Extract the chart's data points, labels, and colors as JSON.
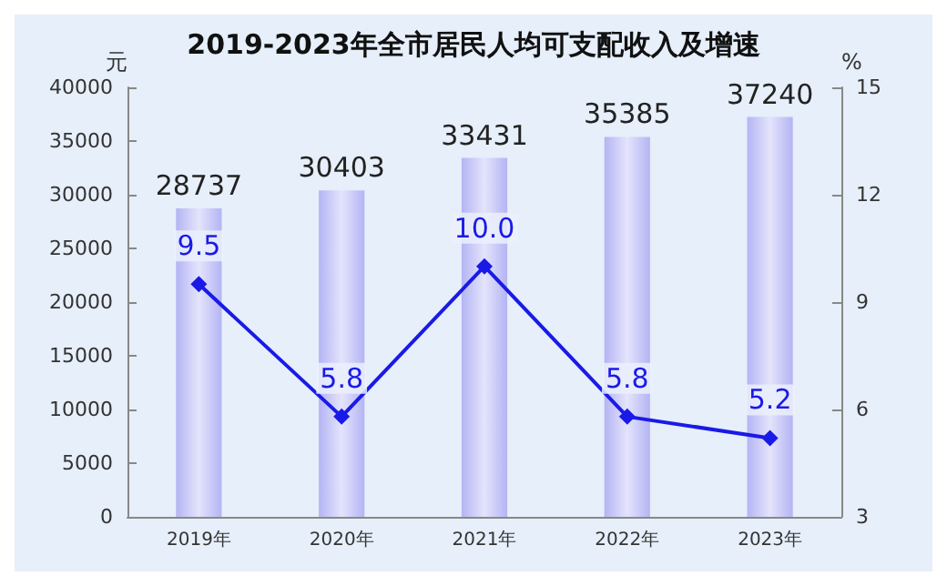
{
  "chart_data": {
    "type": "bar",
    "title": "2019-2023年全市居民人均可支配收入及增速",
    "ylabel": "元",
    "y2label": "%",
    "categories": [
      "2019年",
      "2020年",
      "2021年",
      "2022年",
      "2023年"
    ],
    "series": [
      {
        "color": "#b4b4f4",
        "values": [
          28737,
          30403,
          33431,
          35385,
          37240
        ]
      },
      {
        "type": "line",
        "axis": "y2",
        "color": "#1a1ae6",
        "values": [
          9.5,
          5.8,
          10.0,
          5.8,
          5.2
        ],
        "value_labels": [
          "9.5",
          "5.8",
          "10.0",
          "5.8",
          "5.2"
        ]
      }
    ],
    "ylim": [
      0,
      40000
    ],
    "yticks": [
      0,
      5000,
      10000,
      15000,
      20000,
      25000,
      30000,
      35000,
      40000
    ],
    "y2lim": [
      3,
      15
    ],
    "y2ticks": [
      3,
      6,
      9,
      12,
      15
    ],
    "data_labels": true,
    "marker": "diamond",
    "grid": false
  }
}
